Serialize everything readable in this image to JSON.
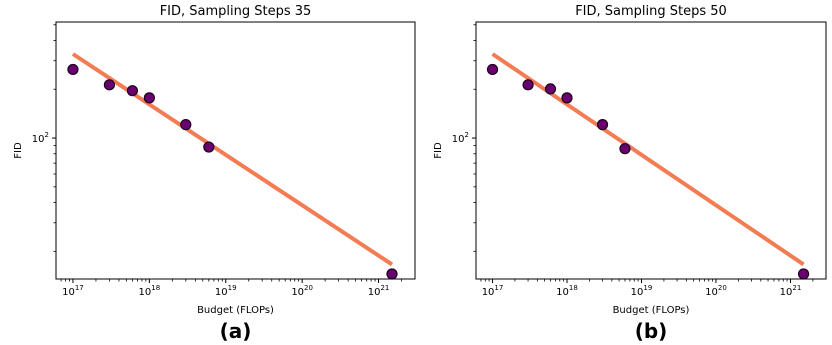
{
  "colors": {
    "fit_line": "#f47c53",
    "marker_fill": "#6a006f",
    "marker_edge": "#1a001c",
    "axes": "#000000"
  },
  "chart_data": [
    {
      "type": "scatter",
      "title": "FID, Sampling Steps 35",
      "xlabel": "Budget (FLOPs)",
      "ylabel": "FID",
      "panel_label": "(a)",
      "xscale": "log",
      "yscale": "log",
      "xlim": [
        6e+16,
        3e+21
      ],
      "ylim": [
        13.5,
        520
      ],
      "x_ticks": [
        {
          "value": 1e+17,
          "base": "10",
          "exp": "17"
        },
        {
          "value": 1e+18,
          "base": "10",
          "exp": "18"
        },
        {
          "value": 1e+19,
          "base": "10",
          "exp": "19"
        },
        {
          "value": 1e+20,
          "base": "10",
          "exp": "20"
        },
        {
          "value": 1e+21,
          "base": "10",
          "exp": "21"
        }
      ],
      "y_ticks": [
        {
          "value": 100,
          "base": "10",
          "exp": "2"
        }
      ],
      "grid": false,
      "points": [
        {
          "x": 1e+17,
          "y": 265
        },
        {
          "x": 3e+17,
          "y": 213
        },
        {
          "x": 6e+17,
          "y": 196
        },
        {
          "x": 1e+18,
          "y": 177
        },
        {
          "x": 3e+18,
          "y": 121
        },
        {
          "x": 6e+18,
          "y": 88
        },
        {
          "x": 1.5e+21,
          "y": 14.5
        }
      ],
      "fit_line": {
        "x": [
          1e+17,
          1.5e+21
        ],
        "y": [
          330,
          16.6
        ]
      }
    },
    {
      "type": "scatter",
      "title": "FID, Sampling Steps 50",
      "xlabel": "Budget (FLOPs)",
      "ylabel": "FID",
      "panel_label": "(b)",
      "xscale": "log",
      "yscale": "log",
      "xlim": [
        6e+16,
        3e+21
      ],
      "ylim": [
        13.5,
        520
      ],
      "x_ticks": [
        {
          "value": 1e+17,
          "base": "10",
          "exp": "17"
        },
        {
          "value": 1e+18,
          "base": "10",
          "exp": "18"
        },
        {
          "value": 1e+19,
          "base": "10",
          "exp": "19"
        },
        {
          "value": 1e+20,
          "base": "10",
          "exp": "20"
        },
        {
          "value": 1e+21,
          "base": "10",
          "exp": "21"
        }
      ],
      "y_ticks": [
        {
          "value": 100,
          "base": "10",
          "exp": "2"
        }
      ],
      "grid": false,
      "points": [
        {
          "x": 1e+17,
          "y": 265
        },
        {
          "x": 3e+17,
          "y": 213
        },
        {
          "x": 6e+17,
          "y": 201
        },
        {
          "x": 1e+18,
          "y": 177
        },
        {
          "x": 3e+18,
          "y": 121
        },
        {
          "x": 6e+18,
          "y": 86
        },
        {
          "x": 1.5e+21,
          "y": 14.5
        }
      ],
      "fit_line": {
        "x": [
          1e+17,
          1.5e+21
        ],
        "y": [
          330,
          16.6
        ]
      }
    }
  ]
}
